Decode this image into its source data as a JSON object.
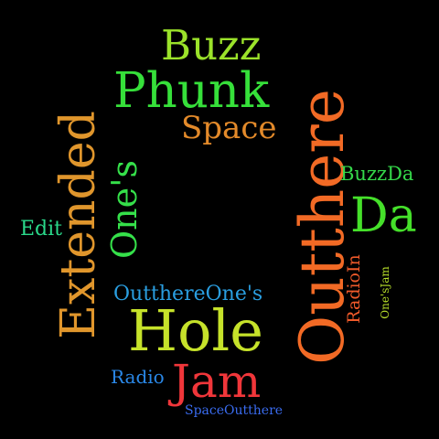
{
  "word_cloud": {
    "background": "#000000",
    "words": [
      {
        "id": "buzz",
        "text": "Buzz",
        "color": "#9be22a",
        "orientation": "horizontal"
      },
      {
        "id": "phunk",
        "text": "Phunk",
        "color": "#36e03a",
        "orientation": "horizontal"
      },
      {
        "id": "space",
        "text": "Space",
        "color": "#e38a2a",
        "orientation": "horizontal"
      },
      {
        "id": "outthere",
        "text": "Outthere",
        "color": "#f26a25",
        "orientation": "vertical"
      },
      {
        "id": "extended",
        "text": "Extended",
        "color": "#e0962c",
        "orientation": "vertical"
      },
      {
        "id": "ones",
        "text": "One's",
        "color": "#35e04a",
        "orientation": "vertical"
      },
      {
        "id": "buzzda",
        "text": "BuzzDa",
        "color": "#35d84a",
        "orientation": "horizontal"
      },
      {
        "id": "da",
        "text": "Da",
        "color": "#45e02a",
        "orientation": "horizontal"
      },
      {
        "id": "edit",
        "text": "Edit",
        "color": "#2ad88a",
        "orientation": "horizontal"
      },
      {
        "id": "radioin",
        "text": "RadioIn",
        "color": "#f05a2a",
        "orientation": "vertical"
      },
      {
        "id": "onesjam",
        "text": "One'sJam",
        "color": "#b8e02a",
        "orientation": "vertical"
      },
      {
        "id": "outthereones",
        "text": "OutthereOne's",
        "color": "#2a9ee0",
        "orientation": "horizontal"
      },
      {
        "id": "hole",
        "text": "Hole",
        "color": "#c6e22a",
        "orientation": "horizontal"
      },
      {
        "id": "radio",
        "text": "Radio",
        "color": "#2a88e8",
        "orientation": "horizontal"
      },
      {
        "id": "jam",
        "text": "Jam",
        "color": "#f0363a",
        "orientation": "horizontal"
      },
      {
        "id": "spaceoutthere",
        "text": "SpaceOutthere",
        "color": "#3a6cf0",
        "orientation": "horizontal"
      }
    ]
  }
}
